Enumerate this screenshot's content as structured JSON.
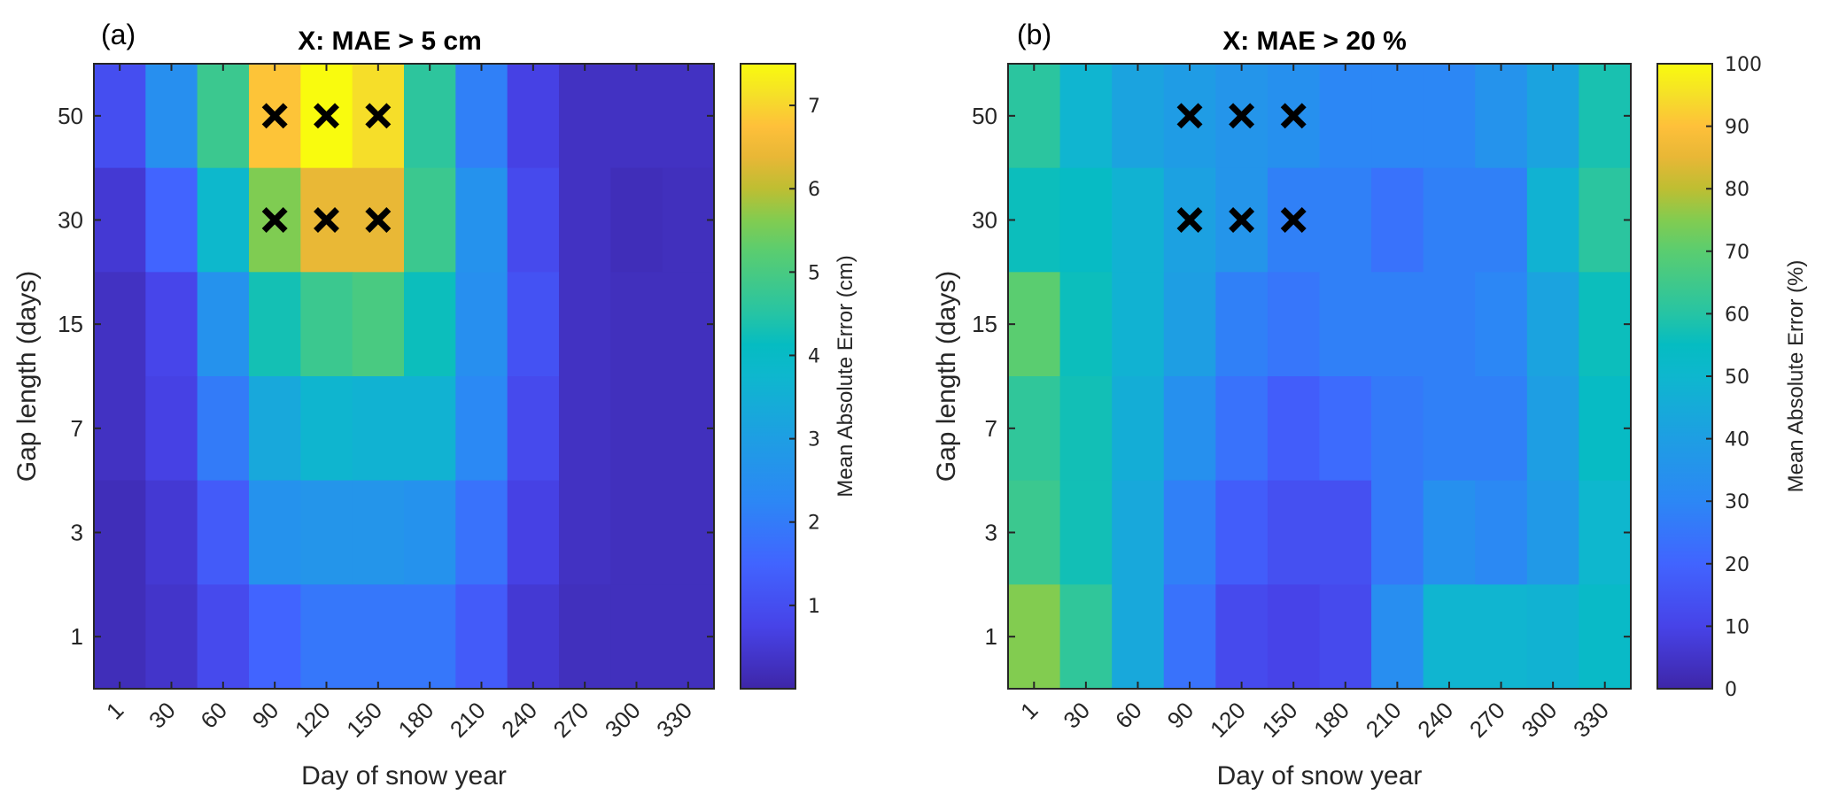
{
  "chart_data": [
    {
      "type": "heatmap",
      "panel_label": "(a)",
      "title": "X: MAE > 5 cm",
      "xlabel": "Day of snow year",
      "ylabel": "Gap length (days)",
      "x_categories": [
        "1",
        "30",
        "60",
        "90",
        "120",
        "150",
        "180",
        "210",
        "240",
        "270",
        "300",
        "330"
      ],
      "y_categories": [
        "50",
        "30",
        "15",
        "7",
        "3",
        "1"
      ],
      "values": [
        [
          1.0,
          2.5,
          4.8,
          6.8,
          7.5,
          7.1,
          4.6,
          2.1,
          0.7,
          0.3,
          0.3,
          0.3
        ],
        [
          0.5,
          1.5,
          3.8,
          5.6,
          6.4,
          6.4,
          4.8,
          2.6,
          0.9,
          0.3,
          0.2,
          0.25
        ],
        [
          0.3,
          0.8,
          2.6,
          4.3,
          4.8,
          5.0,
          4.2,
          2.5,
          1.1,
          0.3,
          0.25,
          0.25
        ],
        [
          0.3,
          0.7,
          2.0,
          3.3,
          3.7,
          3.6,
          3.6,
          2.3,
          0.9,
          0.3,
          0.25,
          0.25
        ],
        [
          0.2,
          0.5,
          1.3,
          2.6,
          2.7,
          2.7,
          2.6,
          1.8,
          0.7,
          0.3,
          0.25,
          0.25
        ],
        [
          0.2,
          0.4,
          0.9,
          1.5,
          1.9,
          1.9,
          1.9,
          1.3,
          0.5,
          0.25,
          0.25,
          0.25
        ]
      ],
      "markers": {
        "symbol": "x",
        "meaning": "MAE > 5 cm",
        "cells": [
          [
            "50",
            "90"
          ],
          [
            "50",
            "120"
          ],
          [
            "50",
            "150"
          ],
          [
            "30",
            "90"
          ],
          [
            "30",
            "120"
          ],
          [
            "30",
            "150"
          ]
        ]
      },
      "colorbar": {
        "label": "Mean Absolute Error (cm)",
        "colormap": "parula",
        "range": [
          0,
          7.5
        ],
        "ticks": [
          "1",
          "2",
          "3",
          "4",
          "5",
          "6",
          "7"
        ],
        "tick_values": [
          1,
          2,
          3,
          4,
          5,
          6,
          7
        ]
      }
    },
    {
      "type": "heatmap",
      "panel_label": "(b)",
      "title": "X: MAE > 20 %",
      "xlabel": "Day of snow year",
      "ylabel": "Gap length (days)",
      "x_categories": [
        "1",
        "30",
        "60",
        "90",
        "120",
        "150",
        "180",
        "210",
        "240",
        "270",
        "300",
        "330"
      ],
      "y_categories": [
        "50",
        "30",
        "15",
        "7",
        "3",
        "1"
      ],
      "values": [
        [
          61,
          49,
          42,
          39,
          36,
          34,
          30,
          30,
          30,
          35,
          42,
          58
        ],
        [
          56,
          54,
          48,
          41,
          36,
          28,
          28,
          24,
          28,
          28,
          48,
          61
        ],
        [
          70,
          56,
          48,
          40,
          28,
          25,
          28,
          28,
          28,
          30,
          42,
          56
        ],
        [
          62,
          57,
          46,
          34,
          24,
          18,
          22,
          26,
          28,
          28,
          40,
          54
        ],
        [
          64,
          57,
          44,
          28,
          18,
          14,
          14,
          26,
          34,
          31,
          38,
          50
        ],
        [
          75,
          62,
          44,
          24,
          12,
          10,
          12,
          33,
          49,
          49,
          48,
          53
        ]
      ],
      "markers": {
        "symbol": "x",
        "meaning": "MAE > 20 %",
        "cells": [
          [
            "50",
            "90"
          ],
          [
            "50",
            "120"
          ],
          [
            "50",
            "150"
          ],
          [
            "30",
            "90"
          ],
          [
            "30",
            "120"
          ],
          [
            "30",
            "150"
          ]
        ]
      },
      "colorbar": {
        "label": "Mean Absolute Error (%)",
        "colormap": "parula",
        "range": [
          0,
          100
        ],
        "ticks": [
          "0",
          "10",
          "20",
          "30",
          "40",
          "50",
          "60",
          "70",
          "80",
          "90",
          "100"
        ],
        "tick_values": [
          0,
          10,
          20,
          30,
          40,
          50,
          60,
          70,
          80,
          90,
          100
        ]
      }
    }
  ]
}
